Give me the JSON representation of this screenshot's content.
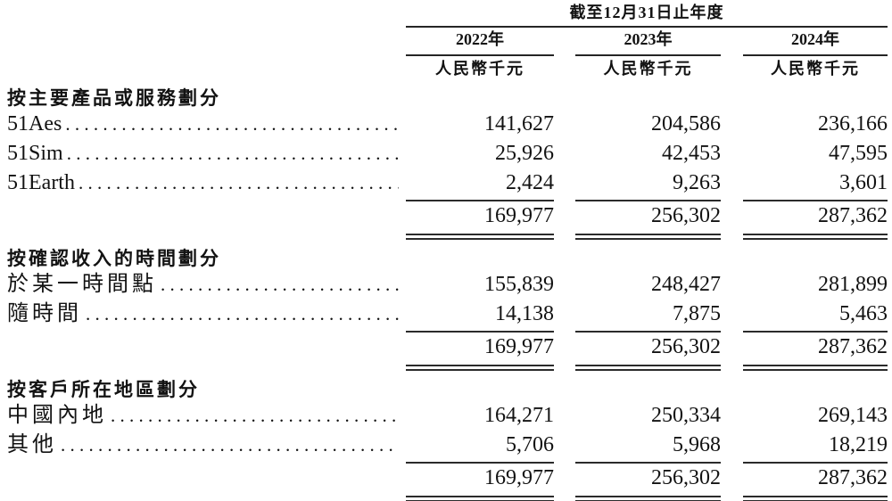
{
  "table": {
    "period_header": "截至12月31日止年度",
    "unit_label": "人民幣千元",
    "years": [
      "2022年",
      "2023年",
      "2024年"
    ],
    "colors": {
      "text": "#121212",
      "rule": "#2b2b2b"
    },
    "sections": [
      {
        "header": "按主要產品或服務劃分",
        "rows": [
          {
            "label": "51Aes",
            "values": [
              "141,627",
              "204,586",
              "236,166"
            ]
          },
          {
            "label": "51Sim",
            "values": [
              "25,926",
              "42,453",
              "47,595"
            ]
          },
          {
            "label": "51Earth",
            "values": [
              "2,424",
              "9,263",
              "3,601"
            ]
          }
        ],
        "total": [
          "169,977",
          "256,302",
          "287,362"
        ]
      },
      {
        "header": "按確認收入的時間劃分",
        "rows": [
          {
            "label": "於某一時間點",
            "values": [
              "155,839",
              "248,427",
              "281,899"
            ]
          },
          {
            "label": "隨時間",
            "values": [
              "14,138",
              "7,875",
              "5,463"
            ]
          }
        ],
        "total": [
          "169,977",
          "256,302",
          "287,362"
        ]
      },
      {
        "header": "按客戶所在地區劃分",
        "rows": [
          {
            "label": "中國內地",
            "values": [
              "164,271",
              "250,334",
              "269,143"
            ]
          },
          {
            "label": "其他",
            "values": [
              "5,706",
              "5,968",
              "18,219"
            ]
          }
        ],
        "total": [
          "169,977",
          "256,302",
          "287,362"
        ]
      }
    ]
  }
}
